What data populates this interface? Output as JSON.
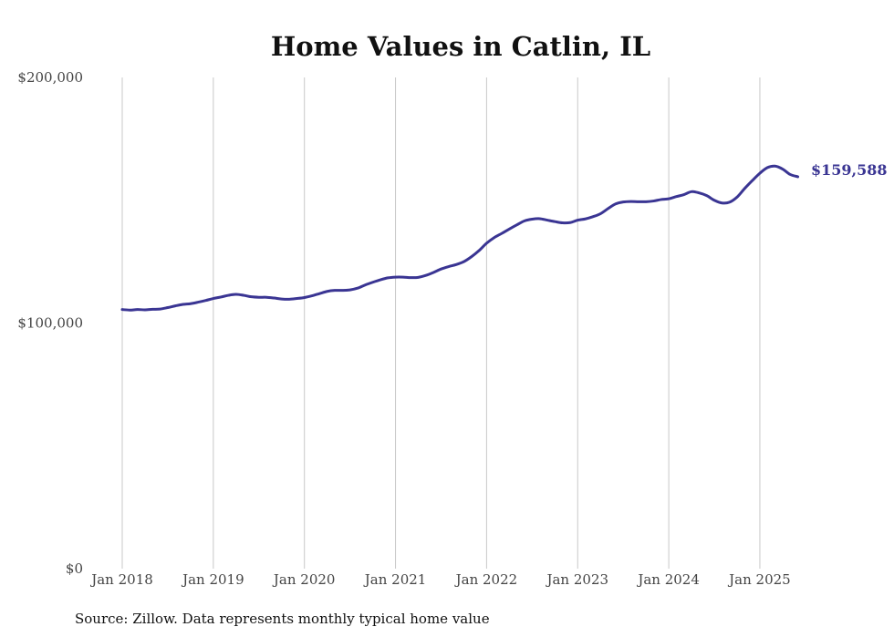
{
  "chart_data": {
    "type": "line",
    "title": "Home Values in Catlin, IL",
    "xlabel": "",
    "ylabel": "",
    "ylim": [
      0,
      200000
    ],
    "xlim": [
      "2018-01",
      "2025-06"
    ],
    "yticks": [
      0,
      100000,
      200000
    ],
    "ytick_labels": [
      "$0",
      "$100,000",
      "$200,000"
    ],
    "xticks": [
      "2018-01",
      "2019-01",
      "2020-01",
      "2021-01",
      "2022-01",
      "2023-01",
      "2024-01",
      "2025-01"
    ],
    "xtick_labels": [
      "Jan 2018",
      "Jan 2019",
      "Jan 2020",
      "Jan 2021",
      "Jan 2022",
      "Jan 2023",
      "Jan 2024",
      "Jan 2025"
    ],
    "grid": "vertical lines at each January",
    "line_color": "#3a3593",
    "end_label": "$159,588",
    "source": "Source: Zillow. Data represents monthly typical home value",
    "series": [
      {
        "x": [
          "2018-01",
          "2018-02",
          "2018-03",
          "2018-04",
          "2018-05",
          "2018-06",
          "2018-07",
          "2018-08",
          "2018-09",
          "2018-10",
          "2018-11",
          "2018-12",
          "2019-01",
          "2019-02",
          "2019-03",
          "2019-04",
          "2019-05",
          "2019-06",
          "2019-07",
          "2019-08",
          "2019-09",
          "2019-10",
          "2019-11",
          "2019-12",
          "2020-01",
          "2020-02",
          "2020-03",
          "2020-04",
          "2020-05",
          "2020-06",
          "2020-07",
          "2020-08",
          "2020-09",
          "2020-10",
          "2020-11",
          "2020-12",
          "2021-01",
          "2021-02",
          "2021-03",
          "2021-04",
          "2021-05",
          "2021-06",
          "2021-07",
          "2021-08",
          "2021-09",
          "2021-10",
          "2021-11",
          "2021-12",
          "2022-01",
          "2022-02",
          "2022-03",
          "2022-04",
          "2022-05",
          "2022-06",
          "2022-07",
          "2022-08",
          "2022-09",
          "2022-10",
          "2022-11",
          "2022-12",
          "2023-01",
          "2023-02",
          "2023-03",
          "2023-04",
          "2023-05",
          "2023-06",
          "2023-07",
          "2023-08",
          "2023-09",
          "2023-10",
          "2023-11",
          "2023-12",
          "2024-01",
          "2024-02",
          "2024-03",
          "2024-04",
          "2024-05",
          "2024-06",
          "2024-07",
          "2024-08",
          "2024-09",
          "2024-10",
          "2024-11",
          "2024-12",
          "2025-01",
          "2025-02",
          "2025-03",
          "2025-04",
          "2025-05",
          "2025-06"
        ],
        "values": [
          105500,
          105300,
          105500,
          105400,
          105600,
          105700,
          106300,
          107000,
          107600,
          107900,
          108500,
          109200,
          110000,
          110600,
          111300,
          111700,
          111300,
          110700,
          110500,
          110500,
          110200,
          109800,
          109700,
          110000,
          110400,
          111100,
          112000,
          112900,
          113300,
          113300,
          113500,
          114200,
          115500,
          116600,
          117600,
          118400,
          118700,
          118700,
          118500,
          118600,
          119400,
          120600,
          122000,
          123000,
          123800,
          125000,
          127000,
          129500,
          132500,
          134800,
          136500,
          138300,
          140000,
          141600,
          142300,
          142500,
          141900,
          141300,
          140800,
          140900,
          141900,
          142400,
          143300,
          144500,
          146600,
          148500,
          149300,
          149500,
          149400,
          149400,
          149700,
          150300,
          150600,
          151500,
          152300,
          153500,
          153000,
          151900,
          150000,
          148900,
          149200,
          151300,
          154800,
          158000,
          161000,
          163300,
          163900,
          162700,
          160500,
          159588
        ]
      }
    ]
  }
}
